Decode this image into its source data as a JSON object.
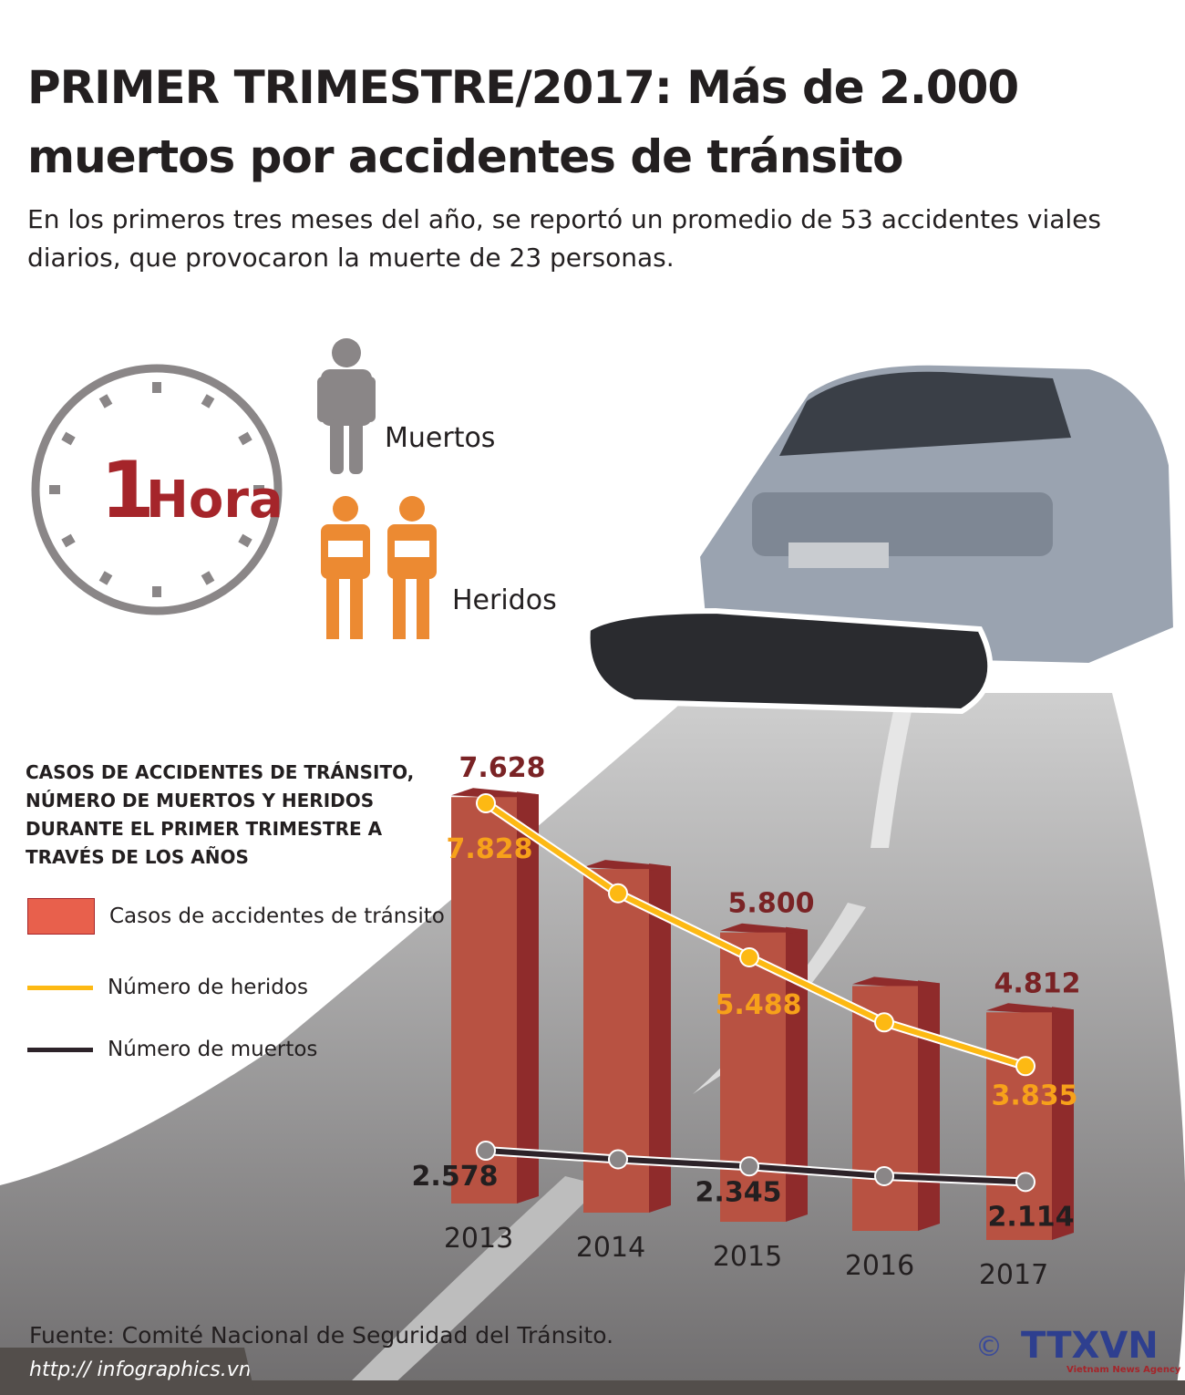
{
  "header": {
    "title": "PRIMER TRIMESTRE/2017: Más de 2.000 muertos por accidentes de tránsito",
    "subtitle": "En los primeros tres meses del año, se reportó un promedio de 53 accidentes viales diarios, que provocaron la muerte de 23 personas."
  },
  "clock": {
    "number": "1",
    "unit": "Hora"
  },
  "people": {
    "dead_label": "Muertos",
    "injured_label": "Heridos",
    "dead_count": 1,
    "injured_count": 2
  },
  "colors": {
    "bar": "#b85242",
    "bar_side": "#8f2b2b",
    "injured": "#fdb913",
    "deaths": "#2d2329",
    "accent": "#a5252a",
    "road": "#8a8889"
  },
  "chart_data": {
    "type": "bar",
    "title": "CASOS DE ACCIDENTES DE TRÁNSITO, NÚMERO DE MUERTOS Y HERIDOS DURANTE EL PRIMER TRIMESTRE A TRAVÉS DE LOS AÑOS",
    "categories": [
      "2013",
      "2014",
      "2015",
      "2016",
      "2017"
    ],
    "series": [
      {
        "name": "Casos de accidentes de tránsito",
        "kind": "bar",
        "values": [
          7628,
          6650,
          5800,
          5100,
          4812
        ],
        "labels": [
          "7.628",
          "",
          "5.800",
          "",
          "4.812"
        ]
      },
      {
        "name": "Número de heridos",
        "kind": "line",
        "values": [
          7828,
          6460,
          5488,
          4500,
          3835
        ],
        "labels": [
          "7.828",
          "",
          "5.488",
          "",
          "3.835"
        ]
      },
      {
        "name": "Número de muertos",
        "kind": "line",
        "values": [
          2578,
          2450,
          2345,
          2200,
          2114
        ],
        "labels": [
          "2.578",
          "",
          "2.345",
          "",
          "2.114"
        ]
      }
    ],
    "legend": "left"
  },
  "footer": {
    "source": "Fuente: Comité Nacional de Seguridad del Tránsito.",
    "url": "http:// infographics.vn",
    "logo": "TTXVN",
    "logo_sub": "Vietnam News Agency",
    "copyright": "©"
  }
}
